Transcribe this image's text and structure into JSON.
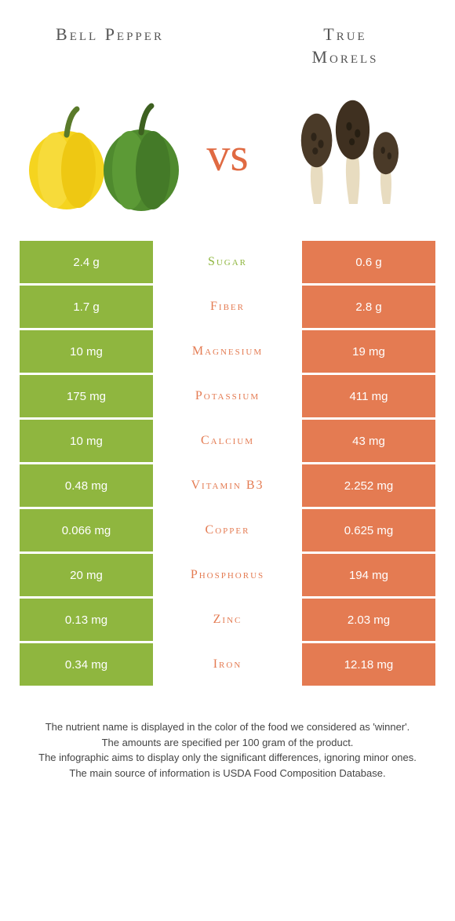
{
  "colors": {
    "left": "#8fb63f",
    "right": "#e47b52",
    "vs": "#e06a42",
    "title": "#555555",
    "footer": "#444444",
    "bg": "#ffffff"
  },
  "left_food": {
    "title": "Bell Pepper"
  },
  "right_food": {
    "title": "True\nMorels"
  },
  "vs_label": "vs",
  "rows": [
    {
      "nutrient": "Sugar",
      "left": "2.4 g",
      "right": "0.6 g",
      "winner": "left"
    },
    {
      "nutrient": "Fiber",
      "left": "1.7 g",
      "right": "2.8 g",
      "winner": "right"
    },
    {
      "nutrient": "Magnesium",
      "left": "10 mg",
      "right": "19 mg",
      "winner": "right"
    },
    {
      "nutrient": "Potassium",
      "left": "175 mg",
      "right": "411 mg",
      "winner": "right"
    },
    {
      "nutrient": "Calcium",
      "left": "10 mg",
      "right": "43 mg",
      "winner": "right"
    },
    {
      "nutrient": "Vitamin B3",
      "left": "0.48 mg",
      "right": "2.252 mg",
      "winner": "right"
    },
    {
      "nutrient": "Copper",
      "left": "0.066 mg",
      "right": "0.625 mg",
      "winner": "right"
    },
    {
      "nutrient": "Phosphorus",
      "left": "20 mg",
      "right": "194 mg",
      "winner": "right"
    },
    {
      "nutrient": "Zinc",
      "left": "0.13 mg",
      "right": "2.03 mg",
      "winner": "right"
    },
    {
      "nutrient": "Iron",
      "left": "0.34 mg",
      "right": "12.18 mg",
      "winner": "right"
    }
  ],
  "footer_lines": [
    "The nutrient name is displayed in the color of the food we considered as 'winner'.",
    "The amounts are specified per 100 gram of the product.",
    "The infographic aims to display only the significant differences, ignoring minor ones.",
    "The main source of information is USDA Food Composition Database."
  ]
}
